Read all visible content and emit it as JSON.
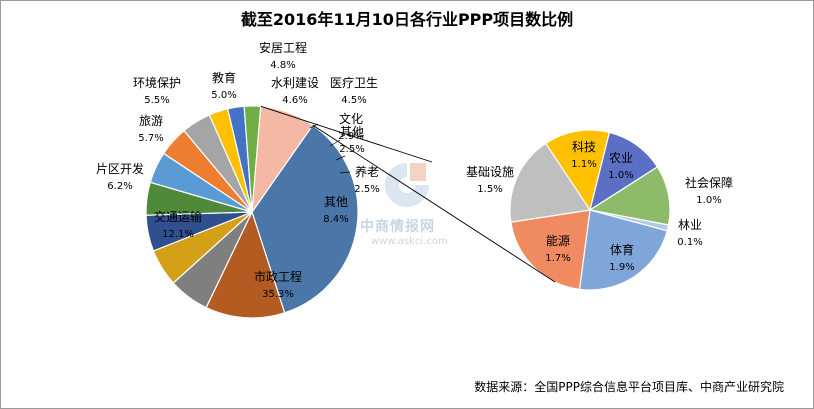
{
  "title": "截至2016年11月10日各行业PPP项目数比例",
  "source": "数据来源：全国PPP综合信息平台项目库、中商产业研究院",
  "watermark": {
    "name": "中商情报网",
    "url": "www.askci.com"
  },
  "chart_data": {
    "type": "pie",
    "title": "截至2016年11月10日各行业PPP项目数比例",
    "main_pie": {
      "slices": [
        {
          "label": "市政工程",
          "value": 35.3,
          "display": "35.3%",
          "color": "#4a76a8"
        },
        {
          "label": "交通运输",
          "value": 12.1,
          "display": "12.1%",
          "color": "#b35b21"
        },
        {
          "label": "片区开发",
          "value": 6.2,
          "display": "6.2%",
          "color": "#7f7f7f"
        },
        {
          "label": "旅游",
          "value": 5.7,
          "display": "5.7%",
          "color": "#d4a017"
        },
        {
          "label": "环境保护",
          "value": 5.5,
          "display": "5.5%",
          "color": "#2f4f8f"
        },
        {
          "label": "教育",
          "value": 5.0,
          "display": "5.0%",
          "color": "#4e8a3a"
        },
        {
          "label": "安居工程",
          "value": 4.8,
          "display": "4.8%",
          "color": "#5b9bd5"
        },
        {
          "label": "水利建设",
          "value": 4.6,
          "display": "4.6%",
          "color": "#ed7d31"
        },
        {
          "label": "医疗卫生",
          "value": 4.5,
          "display": "4.5%",
          "color": "#a5a5a5"
        },
        {
          "label": "文化",
          "value": 2.9,
          "display": "2.9%",
          "color": "#ffc000"
        },
        {
          "label": "其他",
          "value": 2.5,
          "display": "2.5%",
          "color": "#4472c4"
        },
        {
          "label": "养老",
          "value": 2.5,
          "display": "2.5%",
          "color": "#70ad47"
        },
        {
          "label": "其他",
          "value": 8.4,
          "display": "8.4%",
          "color": "#f4b8a4"
        }
      ]
    },
    "secondary_pie": {
      "parent_label": "其他",
      "slices": [
        {
          "label": "科技",
          "value": 1.1,
          "display": "1.1%",
          "color": "#ffc000"
        },
        {
          "label": "农业",
          "value": 1.0,
          "display": "1.0%",
          "color": "#5b6fc4"
        },
        {
          "label": "社会保障",
          "value": 1.0,
          "display": "1.0%",
          "color": "#8dbb6a"
        },
        {
          "label": "林业",
          "value": 0.1,
          "display": "0.1%",
          "color": "#b4c7e7"
        },
        {
          "label": "体育",
          "value": 1.9,
          "display": "1.9%",
          "color": "#7fa6d8"
        },
        {
          "label": "能源",
          "value": 1.7,
          "display": "1.7%",
          "color": "#f08a60"
        },
        {
          "label": "基础设施",
          "value": 1.5,
          "display": "1.5%",
          "color": "#bfbfbf"
        }
      ]
    }
  }
}
